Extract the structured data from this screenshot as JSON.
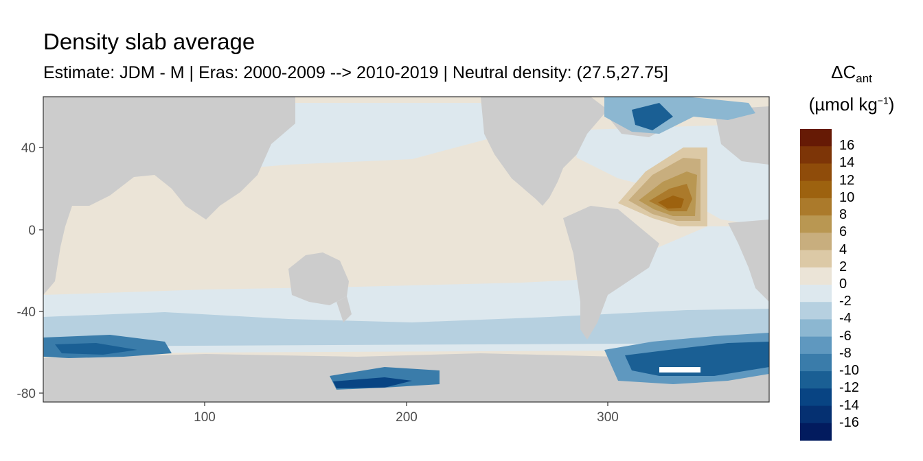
{
  "title": "Density slab average",
  "subtitle": "Estimate: JDM - M | Eras: 2000-2009 --> 2010-2019 | Neutral density: (27.5,27.75]",
  "legend": {
    "title_base": "ΔC",
    "title_sub": "ant",
    "unit_prefix": "(µmol kg",
    "unit_sup": "−1",
    "unit_suffix": ")",
    "bins": [
      {
        "label": "16",
        "color": "#661a05"
      },
      {
        "label": "14",
        "color": "#7d3507"
      },
      {
        "label": "12",
        "color": "#8f4c0a"
      },
      {
        "label": "10",
        "color": "#9d620f"
      },
      {
        "label": "8",
        "color": "#ab7a2b"
      },
      {
        "label": "6",
        "color": "#b99752"
      },
      {
        "label": "4",
        "color": "#c8ae7e"
      },
      {
        "label": "2",
        "color": "#dcc9a6"
      },
      {
        "label": "0",
        "color": "#ebe4d7"
      },
      {
        "label": "-2",
        "color": "#dde8ee"
      },
      {
        "label": "-4",
        "color": "#b6d0e0"
      },
      {
        "label": "-6",
        "color": "#8cb7d1"
      },
      {
        "label": "-8",
        "color": "#5f98bf"
      },
      {
        "label": "-10",
        "color": "#3a7caa"
      },
      {
        "label": "-12",
        "color": "#1a5f94"
      },
      {
        "label": "-14",
        "color": "#084483"
      },
      {
        "label": "-16",
        "color": "#053071"
      },
      {
        "label": "",
        "color": "#021b5e"
      }
    ]
  },
  "axes": {
    "x_ticks": [
      "100",
      "200",
      "300"
    ],
    "y_ticks": [
      "40",
      "0",
      "-40",
      "-80"
    ]
  },
  "colors": {
    "land": "#cccccc",
    "ocean_base": "#ebe4d7",
    "panel_border": "#333333"
  }
}
